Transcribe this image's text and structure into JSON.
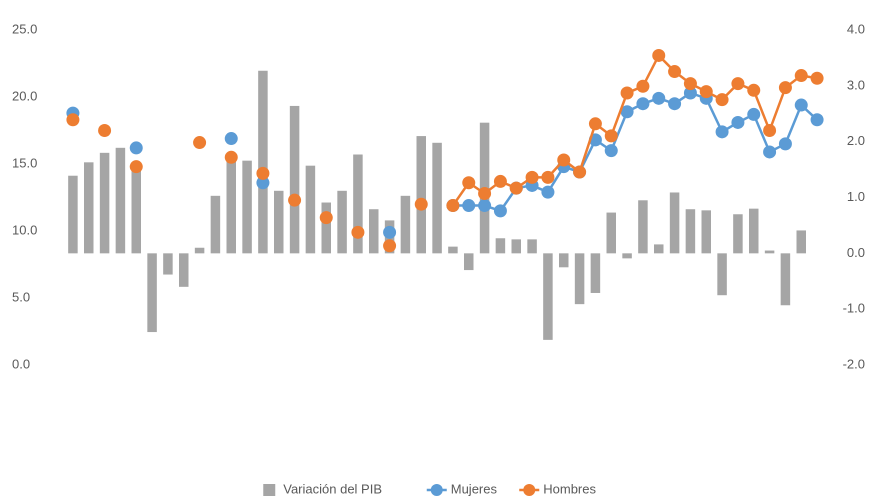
{
  "chart_data": {
    "type": "combo",
    "categories": [
      null,
      null,
      null,
      null,
      null,
      null,
      null,
      null,
      null,
      null,
      null,
      null,
      null,
      null,
      null,
      null,
      null,
      null,
      null,
      null,
      null,
      null,
      null,
      null,
      null,
      null,
      null,
      null,
      null,
      null,
      null,
      null,
      null,
      null,
      null,
      null,
      null,
      null,
      null,
      null,
      null,
      null,
      null,
      null,
      null,
      null,
      null,
      null
    ],
    "series": [
      {
        "name": "Variación del PIB",
        "type": "bar",
        "axis": "y2",
        "color": "#a5a5a5",
        "values": [
          1.39,
          1.63,
          1.8,
          1.89,
          1.6,
          -1.41,
          -0.38,
          -0.6,
          0.1,
          1.03,
          1.73,
          1.66,
          3.27,
          1.12,
          2.64,
          1.57,
          0.91,
          1.12,
          1.77,
          0.79,
          0.59,
          1.03,
          2.1,
          1.98,
          0.12,
          -0.3,
          2.34,
          0.27,
          0.25,
          0.25,
          -1.55,
          -0.25,
          -0.91,
          -0.71,
          0.73,
          -0.09,
          0.95,
          0.16,
          1.09,
          0.79,
          0.77,
          -0.75,
          0.7,
          0.8,
          0.05,
          -0.93,
          0.41,
          null
        ]
      },
      {
        "name": "Mujeres",
        "type": "line",
        "color": "#5b9bd5",
        "values": [
          18.8,
          null,
          null,
          null,
          16.2,
          null,
          null,
          null,
          null,
          null,
          16.9,
          null,
          13.6,
          null,
          null,
          null,
          null,
          null,
          null,
          null,
          9.9,
          null,
          null,
          null,
          11.9,
          11.9,
          11.9,
          11.5,
          13.2,
          13.4,
          12.9,
          14.8,
          14.4,
          16.8,
          16.0,
          18.9,
          19.5,
          19.9,
          19.5,
          20.3,
          19.9,
          17.4,
          18.1,
          18.7,
          15.9,
          16.5,
          19.4,
          18.3
        ]
      },
      {
        "name": "Hombres",
        "type": "line",
        "color": "#ed7d31",
        "values": [
          18.3,
          null,
          17.5,
          null,
          14.8,
          null,
          null,
          null,
          16.6,
          null,
          15.5,
          null,
          14.3,
          null,
          12.3,
          null,
          11.0,
          null,
          9.9,
          null,
          8.9,
          null,
          12.0,
          null,
          11.9,
          13.6,
          12.8,
          13.7,
          13.2,
          14.0,
          14.0,
          15.3,
          14.4,
          18.0,
          17.1,
          20.3,
          20.8,
          23.1,
          21.9,
          21.0,
          20.4,
          19.8,
          21.0,
          20.5,
          17.5,
          20.7,
          21.6,
          21.4
        ]
      }
    ],
    "ylim": [
      0,
      25
    ],
    "yticks": [
      {
        "value": 0,
        "label": "0.0"
      },
      {
        "value": 5,
        "label": "5.0"
      },
      {
        "value": 10,
        "label": "10.0"
      },
      {
        "value": 15,
        "label": "15.0"
      },
      {
        "value": 20,
        "label": "20.0"
      },
      {
        "value": 25,
        "label": "25.0"
      }
    ],
    "y2lim": [
      -2,
      4
    ],
    "y2ticks": [
      {
        "value": -2,
        "label": "-2.0"
      },
      {
        "value": -1,
        "label": "-1.0"
      },
      {
        "value": 0,
        "label": "0.0"
      },
      {
        "value": 1,
        "label": "1.0"
      },
      {
        "value": 2,
        "label": "2.0"
      },
      {
        "value": 3,
        "label": "3.0"
      },
      {
        "value": 4,
        "label": "4.0"
      }
    ],
    "legend": "bottom"
  }
}
